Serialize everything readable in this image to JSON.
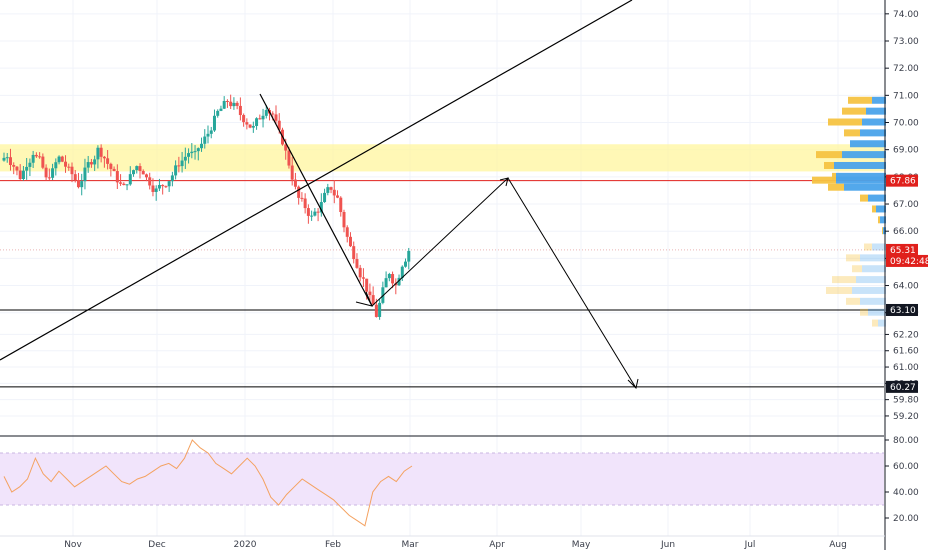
{
  "chart_data": [
    {
      "type": "candlestick",
      "y_axis_ticks": [
        "74.00",
        "73.00",
        "72.00",
        "71.00",
        "70.00",
        "69.00",
        "68.00",
        "67.00",
        "66.00",
        "65.00",
        "64.00",
        "63.00",
        "62.20",
        "61.60",
        "61.00",
        "60.40",
        "59.80",
        "59.20"
      ],
      "x_axis_ticks": [
        "Nov",
        "Dec",
        "2020",
        "Feb",
        "Mar",
        "Apr",
        "May",
        "Jun",
        "Jul",
        "Aug"
      ],
      "price_labels": [
        {
          "value": "67.86",
          "color": "#e0201c",
          "role": "horizontal-level"
        },
        {
          "value": "65.31",
          "color": "#e0201c",
          "role": "last-price"
        },
        {
          "value": "09:42:48",
          "color": "#e0201c",
          "role": "countdown"
        },
        {
          "value": "63.10",
          "color": "#131722",
          "role": "support-line"
        },
        {
          "value": "60.27",
          "color": "#131722",
          "role": "support-line"
        }
      ],
      "zone": {
        "from": 68.2,
        "to": 69.2,
        "color": "#fff59d"
      },
      "approx_closes": [
        68.8,
        68.4,
        68.0,
        68.5,
        68.9,
        68.6,
        67.9,
        68.2,
        68.7,
        68.4,
        68.1,
        67.7,
        68.2,
        68.6,
        69.0,
        68.7,
        68.3,
        67.9,
        67.6,
        68.0,
        68.4,
        68.2,
        67.8,
        67.5,
        67.7,
        67.9,
        68.3,
        68.6,
        68.9,
        68.8,
        69.2,
        69.6,
        70.1,
        70.5,
        70.8,
        70.6,
        70.3,
        70.0,
        69.8,
        70.2,
        70.6,
        70.3,
        69.6,
        68.9,
        68.0,
        67.2,
        66.9,
        66.5,
        66.8,
        67.3,
        67.6,
        67.2,
        66.2,
        65.4,
        64.8,
        64.2,
        63.5,
        62.9,
        63.8,
        64.5,
        64.0,
        64.8,
        65.3
      ],
      "rsi": {
        "ticks": [
          "80.00",
          "60.00",
          "40.00",
          "20.00"
        ],
        "upper": 70,
        "lower": 30,
        "band_color": "#f1e4fb"
      }
    }
  ],
  "colors": {
    "up": "#26a69a",
    "down": "#ef5350",
    "drawing": "#000000",
    "rsi_line": "#f4a261",
    "profile_up": "#f6c342",
    "profile_down": "#4aa3ea"
  }
}
